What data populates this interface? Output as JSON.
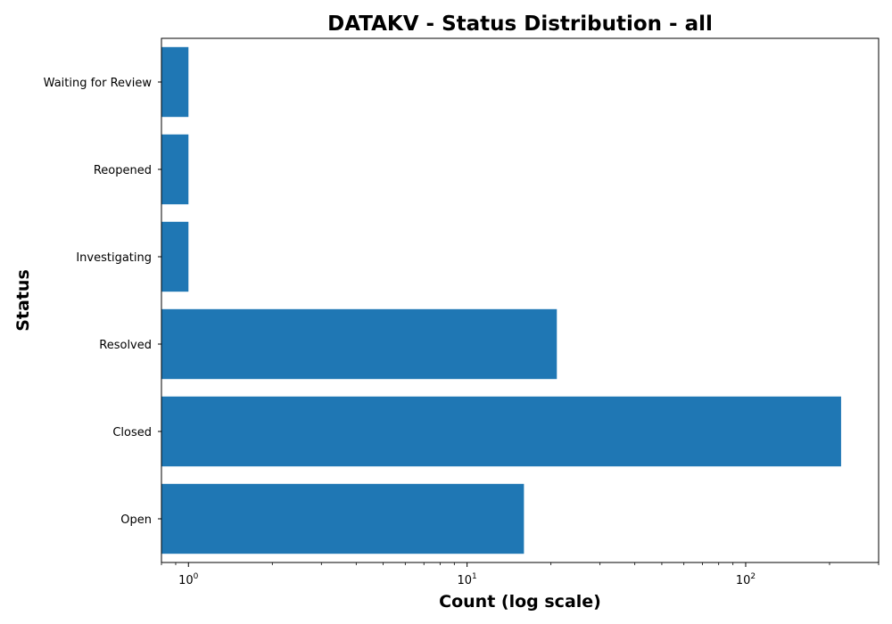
{
  "chart_data": {
    "type": "bar",
    "orientation": "horizontal",
    "title": "DATAKV - Status Distribution - all",
    "xlabel": "Count (log scale)",
    "ylabel": "Status",
    "x_scale": "log",
    "xlim": [
      0.8,
      300
    ],
    "x_ticks": [
      {
        "value": 1,
        "base": "10",
        "exp": "0"
      },
      {
        "value": 10,
        "base": "10",
        "exp": "1"
      },
      {
        "value": 100,
        "base": "10",
        "exp": "2"
      }
    ],
    "categories": [
      "Open",
      "Closed",
      "Resolved",
      "Investigating",
      "Reopened",
      "Waiting for Review"
    ],
    "values": [
      16,
      220,
      21,
      1,
      1,
      1
    ],
    "bar_color": "#1f77b4",
    "grid": false,
    "legend": false
  }
}
